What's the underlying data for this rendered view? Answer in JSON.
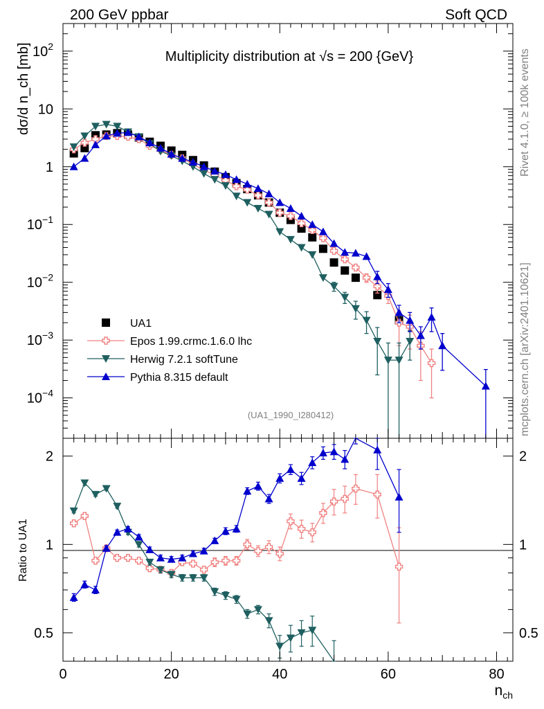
{
  "header": {
    "left": "200 GeV ppbar",
    "right": "Soft QCD"
  },
  "side": {
    "rivet": "Rivet 4.1.0, ≥ 100k events",
    "mcplots": "mcplots.cern.ch [arXiv:2401.10621]"
  },
  "colors": {
    "ua1": "#000000",
    "epos": "#f08080",
    "herwig": "#1f5f60",
    "pythia": "#0000cd"
  },
  "chart_data": {
    "type": "scatter",
    "title": "Multiplicity distribution at √s = 200 {GeV}",
    "analysis_tag": "(UA1_1990_I280412)",
    "xlabel": "n_ch",
    "ylabel_main": "dσ/d n_ch [mb]",
    "ylabel_ratio": "Ratio to UA1",
    "xlim": [
      0,
      83
    ],
    "ylim_main": [
      2e-05,
      300
    ],
    "yscale_main": "log",
    "ylim_ratio": [
      0.4,
      2.3
    ],
    "yscale_ratio": "log",
    "x_ticks": [
      "0",
      "20",
      "40",
      "60",
      "80"
    ],
    "y_ticks_main": [
      "10^-4",
      "10^-3",
      "10^-2",
      "10^-1",
      "1",
      "10",
      "10^2"
    ],
    "y_ticks_ratio": [
      "0.5",
      "1",
      "2"
    ],
    "legend": [
      "UA1",
      "Epos 1.99.crmc.1.6.0 lhc",
      "Herwig 7.2.1 softTune",
      "Pythia 8.315 default"
    ],
    "legend_position": "bottom-left",
    "series": [
      {
        "name": "UA1",
        "style": "data",
        "x": [
          2,
          4,
          6,
          8,
          10,
          12,
          14,
          16,
          18,
          20,
          22,
          24,
          26,
          28,
          30,
          32,
          34,
          36,
          38,
          40,
          42,
          44,
          46,
          48,
          50,
          52,
          54,
          58,
          62
        ],
        "y": [
          1.7,
          2.1,
          3.5,
          3.6,
          3.8,
          3.6,
          3.2,
          2.7,
          2.3,
          1.9,
          1.6,
          1.3,
          1.05,
          0.82,
          0.66,
          0.52,
          0.41,
          0.32,
          0.24,
          0.16,
          0.12,
          0.085,
          0.06,
          0.038,
          0.022,
          0.016,
          0.012,
          0.006,
          0.0022
        ]
      },
      {
        "name": "Epos 1.99.crmc.1.6.0 lhc",
        "style": "open-cross",
        "x": [
          2,
          4,
          6,
          8,
          10,
          12,
          14,
          16,
          18,
          20,
          22,
          24,
          26,
          28,
          30,
          32,
          34,
          36,
          38,
          40,
          42,
          44,
          46,
          48,
          50,
          52,
          54,
          56,
          58,
          60,
          62,
          64,
          66,
          68
        ],
        "y": [
          2.0,
          2.6,
          3.0,
          3.4,
          3.4,
          3.3,
          3.0,
          2.3,
          1.95,
          1.6,
          1.4,
          1.1,
          0.87,
          0.72,
          0.58,
          0.46,
          0.4,
          0.32,
          0.24,
          0.16,
          0.14,
          0.105,
          0.08,
          0.058,
          0.035,
          0.025,
          0.018,
          0.012,
          0.0085,
          0.0058,
          0.002,
          0.0017,
          0.0008,
          0.0004
        ],
        "yerr": [
          0,
          0,
          0,
          0,
          0,
          0,
          0,
          0,
          0,
          0,
          0,
          0,
          0,
          0,
          0,
          0,
          0,
          0,
          0,
          0,
          0,
          0,
          0,
          0,
          0,
          0.002,
          0.002,
          0.002,
          0.002,
          0.0015,
          0.0012,
          0.001,
          0.0006,
          0.0003
        ]
      },
      {
        "name": "Herwig 7.2.1 softTune",
        "style": "down-triangle",
        "x": [
          2,
          4,
          6,
          8,
          10,
          12,
          14,
          16,
          18,
          20,
          22,
          24,
          26,
          28,
          30,
          32,
          34,
          36,
          38,
          40,
          42,
          44,
          46,
          48,
          50,
          52,
          54,
          56,
          58,
          60,
          62,
          64
        ],
        "y": [
          2.2,
          3.4,
          5.0,
          5.4,
          5.0,
          4.0,
          3.3,
          2.5,
          1.85,
          1.55,
          1.25,
          1.0,
          0.76,
          0.6,
          0.47,
          0.31,
          0.24,
          0.19,
          0.15,
          0.075,
          0.055,
          0.04,
          0.03,
          0.012,
          0.0085,
          0.0055,
          0.0035,
          0.0022,
          0.00095,
          0.00045,
          0.00045,
          0.00095
        ],
        "yerr": [
          0,
          0,
          0,
          0,
          0,
          0,
          0,
          0,
          0,
          0,
          0,
          0,
          0,
          0,
          0,
          0,
          0,
          0,
          0,
          0,
          0,
          0,
          0,
          0,
          0.0015,
          0.0012,
          0.0012,
          0.0009,
          0.0007,
          0.00044,
          0.00044,
          0.0005
        ]
      },
      {
        "name": "Pythia 8.315 default",
        "style": "up-triangle",
        "x": [
          2,
          4,
          6,
          8,
          10,
          12,
          14,
          16,
          18,
          20,
          22,
          24,
          26,
          28,
          30,
          32,
          34,
          36,
          38,
          40,
          42,
          44,
          46,
          48,
          50,
          52,
          54,
          56,
          58,
          60,
          62,
          64,
          66,
          68,
          70,
          78
        ],
        "y": [
          1.0,
          1.4,
          2.4,
          3.4,
          3.8,
          3.9,
          3.3,
          2.6,
          2.1,
          1.65,
          1.4,
          1.2,
          1.0,
          0.84,
          0.73,
          0.6,
          0.5,
          0.42,
          0.34,
          0.24,
          0.19,
          0.14,
          0.1,
          0.075,
          0.047,
          0.033,
          0.032,
          0.028,
          0.0125,
          0.0075,
          0.003,
          0.0022,
          0.0012,
          0.0025,
          0.0008,
          0.00016
        ],
        "yerr": [
          0,
          0,
          0,
          0,
          0,
          0,
          0,
          0,
          0,
          0,
          0,
          0,
          0,
          0,
          0,
          0,
          0,
          0,
          0,
          0,
          0,
          0,
          0,
          0,
          0,
          0,
          0,
          0,
          0.003,
          0.002,
          0.001,
          0.0008,
          0.0005,
          0.0011,
          0.0005,
          0.00015
        ]
      }
    ],
    "ratio_series": [
      {
        "name": "Epos 1.99.crmc.1.6.0 lhc",
        "x": [
          2,
          4,
          6,
          8,
          10,
          12,
          14,
          16,
          18,
          20,
          22,
          24,
          26,
          28,
          30,
          32,
          34,
          36,
          38,
          40,
          42,
          44,
          46,
          48,
          50,
          52,
          54,
          58,
          62
        ],
        "y": [
          1.18,
          1.25,
          0.88,
          0.97,
          0.9,
          0.9,
          0.88,
          0.83,
          0.82,
          0.8,
          0.87,
          0.86,
          0.82,
          0.87,
          0.88,
          0.88,
          1.0,
          0.95,
          0.98,
          0.93,
          1.2,
          1.13,
          1.1,
          1.28,
          1.4,
          1.43,
          1.55,
          1.48,
          0.84
        ],
        "yerr": [
          0.03,
          0.03,
          0.02,
          0.02,
          0.02,
          0.02,
          0.02,
          0.02,
          0.02,
          0.02,
          0.02,
          0.02,
          0.02,
          0.03,
          0.03,
          0.03,
          0.04,
          0.04,
          0.05,
          0.05,
          0.07,
          0.08,
          0.08,
          0.1,
          0.14,
          0.15,
          0.18,
          0.25,
          0.3
        ]
      },
      {
        "name": "Herwig 7.2.1 softTune",
        "x": [
          2,
          4,
          6,
          8,
          10,
          12,
          14,
          16,
          18,
          20,
          22,
          24,
          26,
          28,
          30,
          32,
          34,
          36,
          38,
          40,
          42,
          44,
          46,
          50
        ],
        "y": [
          1.3,
          1.62,
          1.48,
          1.55,
          1.35,
          1.1,
          1.0,
          0.87,
          0.82,
          0.79,
          0.77,
          0.77,
          0.77,
          0.69,
          0.67,
          0.65,
          0.58,
          0.6,
          0.55,
          0.45,
          0.48,
          0.5,
          0.51,
          0.39
        ],
        "yerr": [
          0.02,
          0.03,
          0.02,
          0.02,
          0.02,
          0.02,
          0.02,
          0.02,
          0.02,
          0.02,
          0.02,
          0.02,
          0.02,
          0.02,
          0.02,
          0.02,
          0.02,
          0.02,
          0.03,
          0.04,
          0.05,
          0.05,
          0.06,
          0.08
        ]
      },
      {
        "name": "Pythia 8.315 default",
        "x": [
          2,
          4,
          6,
          8,
          10,
          12,
          14,
          16,
          18,
          20,
          22,
          24,
          26,
          28,
          30,
          32,
          34,
          36,
          38,
          40,
          42,
          44,
          46,
          48,
          50,
          52,
          54,
          58,
          62
        ],
        "y": [
          0.66,
          0.73,
          0.7,
          0.97,
          1.1,
          1.13,
          1.06,
          0.96,
          0.9,
          0.89,
          0.9,
          0.93,
          0.95,
          1.03,
          1.11,
          1.13,
          1.52,
          1.58,
          1.43,
          1.68,
          1.8,
          1.68,
          1.9,
          2.05,
          2.07,
          1.95,
          2.4,
          2.1,
          1.45
        ],
        "yerr": [
          0.02,
          0.02,
          0.02,
          0.02,
          0.02,
          0.02,
          0.02,
          0.02,
          0.02,
          0.02,
          0.02,
          0.02,
          0.02,
          0.02,
          0.03,
          0.03,
          0.04,
          0.05,
          0.05,
          0.06,
          0.07,
          0.08,
          0.09,
          0.1,
          0.12,
          0.14,
          0.2,
          0.3,
          0.35
        ]
      }
    ]
  }
}
